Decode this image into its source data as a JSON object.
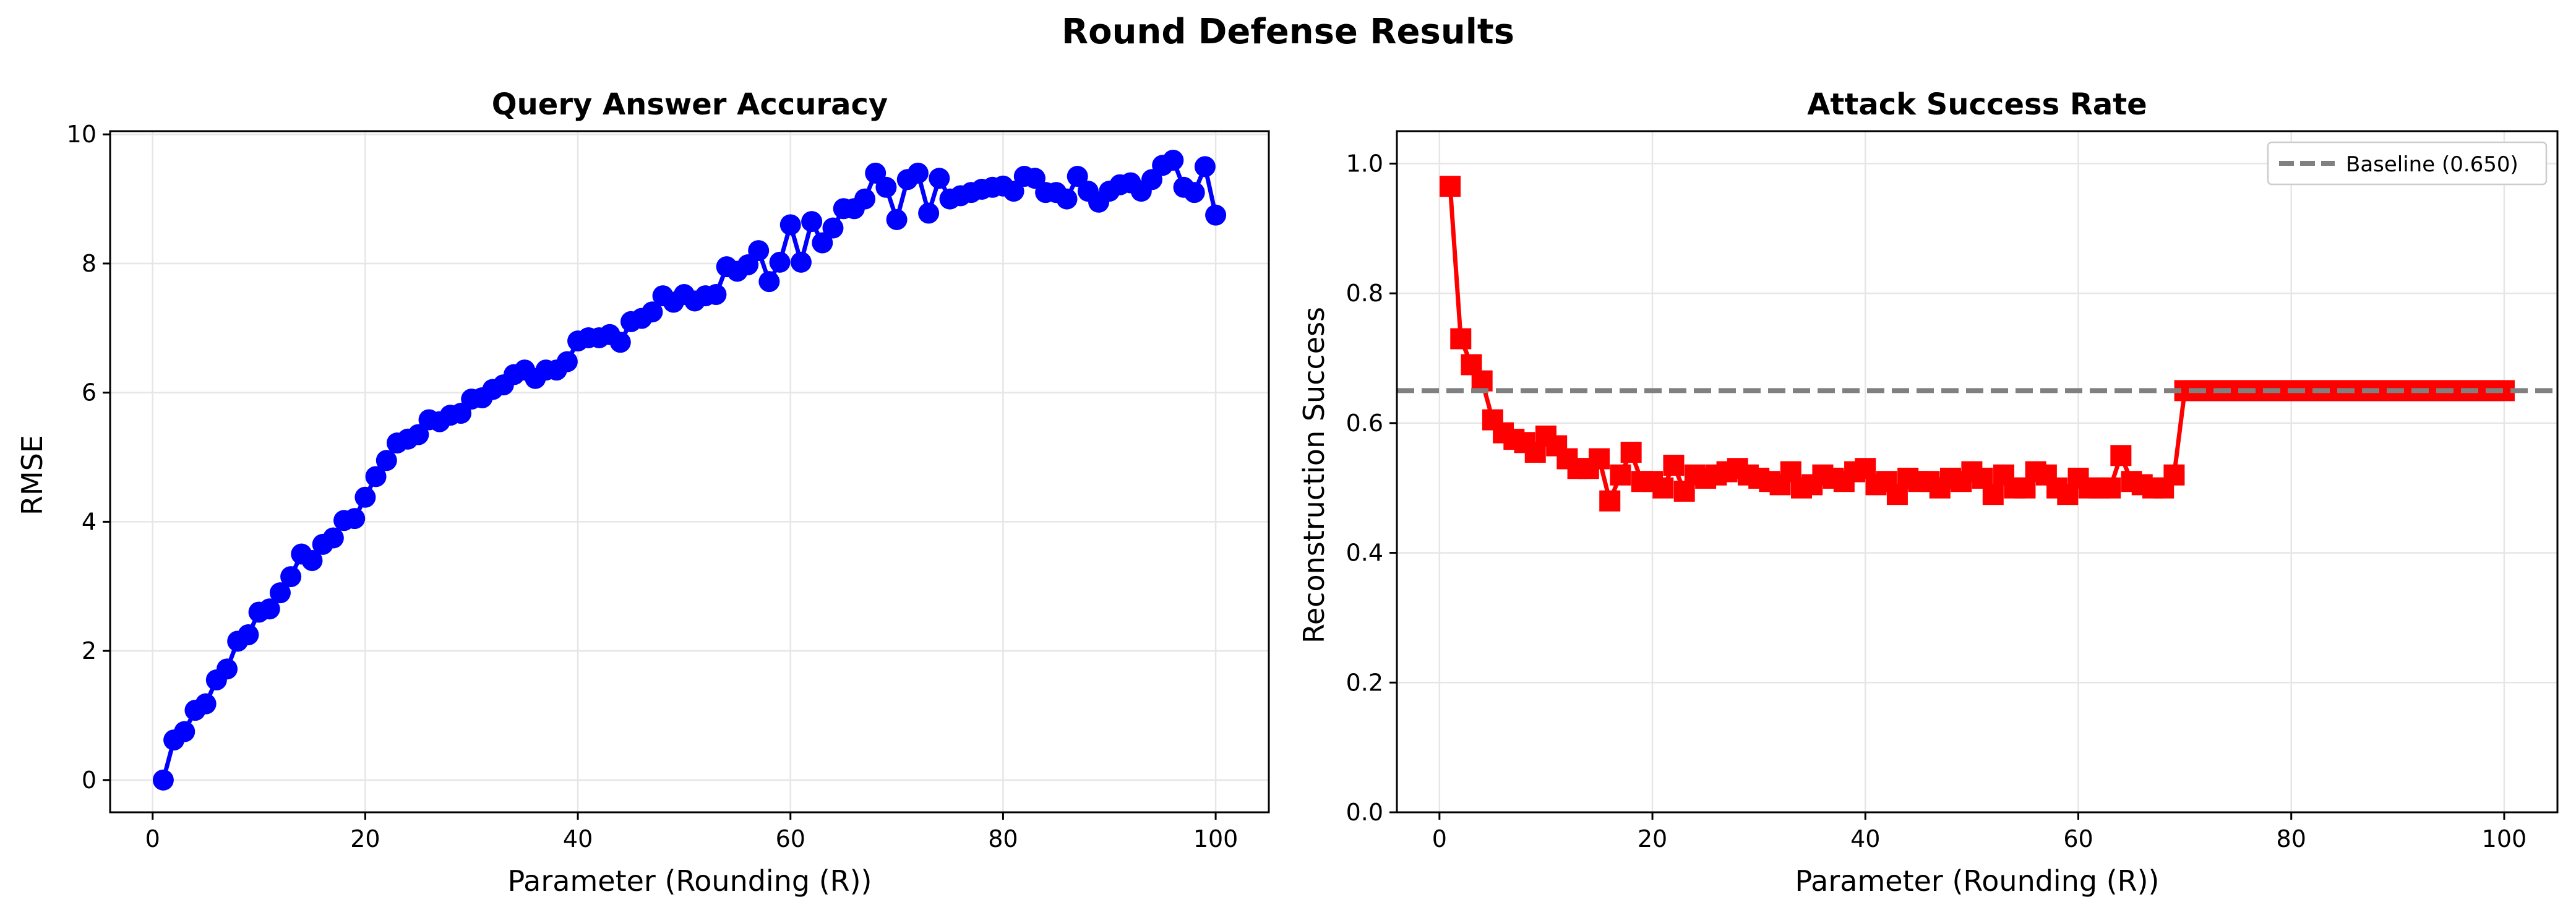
{
  "figure_title": "Round Defense Results",
  "chart_data": [
    {
      "type": "line",
      "title": "Query Answer Accuracy",
      "xlabel": "Parameter (Rounding (R))",
      "ylabel": "RMSE",
      "xlim": [
        -4,
        105
      ],
      "ylim": [
        -0.5,
        10.05
      ],
      "xticks": [
        0,
        20,
        40,
        60,
        80,
        100
      ],
      "yticks": [
        0,
        2,
        4,
        6,
        8,
        10
      ],
      "grid": true,
      "series": [
        {
          "color": "#0000ff",
          "marker": "circle",
          "x": [
            1,
            2,
            3,
            4,
            5,
            6,
            7,
            8,
            9,
            10,
            11,
            12,
            13,
            14,
            15,
            16,
            17,
            18,
            19,
            20,
            21,
            22,
            23,
            24,
            25,
            26,
            27,
            28,
            29,
            30,
            31,
            32,
            33,
            34,
            35,
            36,
            37,
            38,
            39,
            40,
            41,
            42,
            43,
            44,
            45,
            46,
            47,
            48,
            49,
            50,
            51,
            52,
            53,
            54,
            55,
            56,
            57,
            58,
            59,
            60,
            61,
            62,
            63,
            64,
            65,
            66,
            67,
            68,
            69,
            70,
            71,
            72,
            73,
            74,
            75,
            76,
            77,
            78,
            79,
            80,
            81,
            82,
            83,
            84,
            85,
            86,
            87,
            88,
            89,
            90,
            91,
            92,
            93,
            94,
            95,
            96,
            97,
            98,
            99,
            100
          ],
          "y": [
            0.0,
            0.62,
            0.75,
            1.08,
            1.18,
            1.55,
            1.72,
            2.15,
            2.25,
            2.6,
            2.65,
            2.9,
            3.15,
            3.5,
            3.4,
            3.65,
            3.75,
            4.02,
            4.05,
            4.38,
            4.7,
            4.95,
            5.22,
            5.28,
            5.35,
            5.58,
            5.55,
            5.65,
            5.68,
            5.9,
            5.92,
            6.05,
            6.12,
            6.28,
            6.35,
            6.22,
            6.35,
            6.35,
            6.48,
            6.8,
            6.85,
            6.85,
            6.9,
            6.78,
            7.1,
            7.15,
            7.25,
            7.5,
            7.4,
            7.52,
            7.42,
            7.5,
            7.52,
            7.95,
            7.88,
            7.98,
            8.2,
            7.72,
            8.02,
            8.6,
            8.02,
            8.65,
            8.32,
            8.55,
            8.85,
            8.85,
            9.0,
            9.4,
            9.18,
            8.68,
            9.3,
            9.4,
            8.78,
            9.32,
            9.0,
            9.05,
            9.1,
            9.15,
            9.18,
            9.2,
            9.12,
            9.35,
            9.32,
            9.1,
            9.1,
            9.0,
            9.35,
            9.12,
            8.95,
            9.12,
            9.22,
            9.25,
            9.12,
            9.3,
            9.52,
            9.6,
            9.18,
            9.1,
            9.5,
            8.75
          ]
        }
      ]
    },
    {
      "type": "line",
      "title": "Attack Success Rate",
      "xlabel": "Parameter (Rounding (R))",
      "ylabel": "Reconstruction Success",
      "xlim": [
        -4,
        105
      ],
      "ylim": [
        0.0,
        1.05
      ],
      "xticks": [
        0,
        20,
        40,
        60,
        80,
        100
      ],
      "yticks": [
        0.0,
        0.2,
        0.4,
        0.6,
        0.8,
        1.0
      ],
      "grid": true,
      "legend_position": "top-right",
      "baseline": {
        "label": "Baseline (0.650)",
        "value": 0.65,
        "color": "#808080",
        "style": "dashed"
      },
      "series": [
        {
          "color": "#ff0000",
          "marker": "square",
          "x": [
            1,
            2,
            3,
            4,
            5,
            6,
            7,
            8,
            9,
            10,
            11,
            12,
            13,
            14,
            15,
            16,
            17,
            18,
            19,
            20,
            21,
            22,
            23,
            24,
            25,
            26,
            27,
            28,
            29,
            30,
            31,
            32,
            33,
            34,
            35,
            36,
            37,
            38,
            39,
            40,
            41,
            42,
            43,
            44,
            45,
            46,
            47,
            48,
            49,
            50,
            51,
            52,
            53,
            54,
            55,
            56,
            57,
            58,
            59,
            60,
            61,
            62,
            63,
            64,
            65,
            66,
            67,
            68,
            69,
            70,
            71,
            72,
            73,
            74,
            75,
            76,
            77,
            78,
            79,
            80,
            81,
            82,
            83,
            84,
            85,
            86,
            87,
            88,
            89,
            90,
            91,
            92,
            93,
            94,
            95,
            96,
            97,
            98,
            99,
            100
          ],
          "y": [
            0.965,
            0.73,
            0.69,
            0.665,
            0.605,
            0.585,
            0.575,
            0.57,
            0.555,
            0.58,
            0.565,
            0.545,
            0.53,
            0.53,
            0.545,
            0.48,
            0.52,
            0.555,
            0.51,
            0.51,
            0.5,
            0.535,
            0.495,
            0.52,
            0.515,
            0.52,
            0.525,
            0.53,
            0.52,
            0.515,
            0.51,
            0.505,
            0.525,
            0.5,
            0.505,
            0.52,
            0.515,
            0.51,
            0.525,
            0.53,
            0.505,
            0.51,
            0.49,
            0.515,
            0.51,
            0.51,
            0.5,
            0.515,
            0.51,
            0.525,
            0.515,
            0.49,
            0.52,
            0.5,
            0.5,
            0.525,
            0.52,
            0.5,
            0.49,
            0.515,
            0.5,
            0.5,
            0.5,
            0.55,
            0.51,
            0.505,
            0.5,
            0.5,
            0.52,
            0.65,
            0.65,
            0.65,
            0.65,
            0.65,
            0.65,
            0.65,
            0.65,
            0.65,
            0.65,
            0.65,
            0.65,
            0.65,
            0.65,
            0.65,
            0.65,
            0.65,
            0.65,
            0.65,
            0.65,
            0.65,
            0.65,
            0.65,
            0.65,
            0.65,
            0.65,
            0.65,
            0.65,
            0.65,
            0.65,
            0.65
          ]
        }
      ]
    }
  ]
}
